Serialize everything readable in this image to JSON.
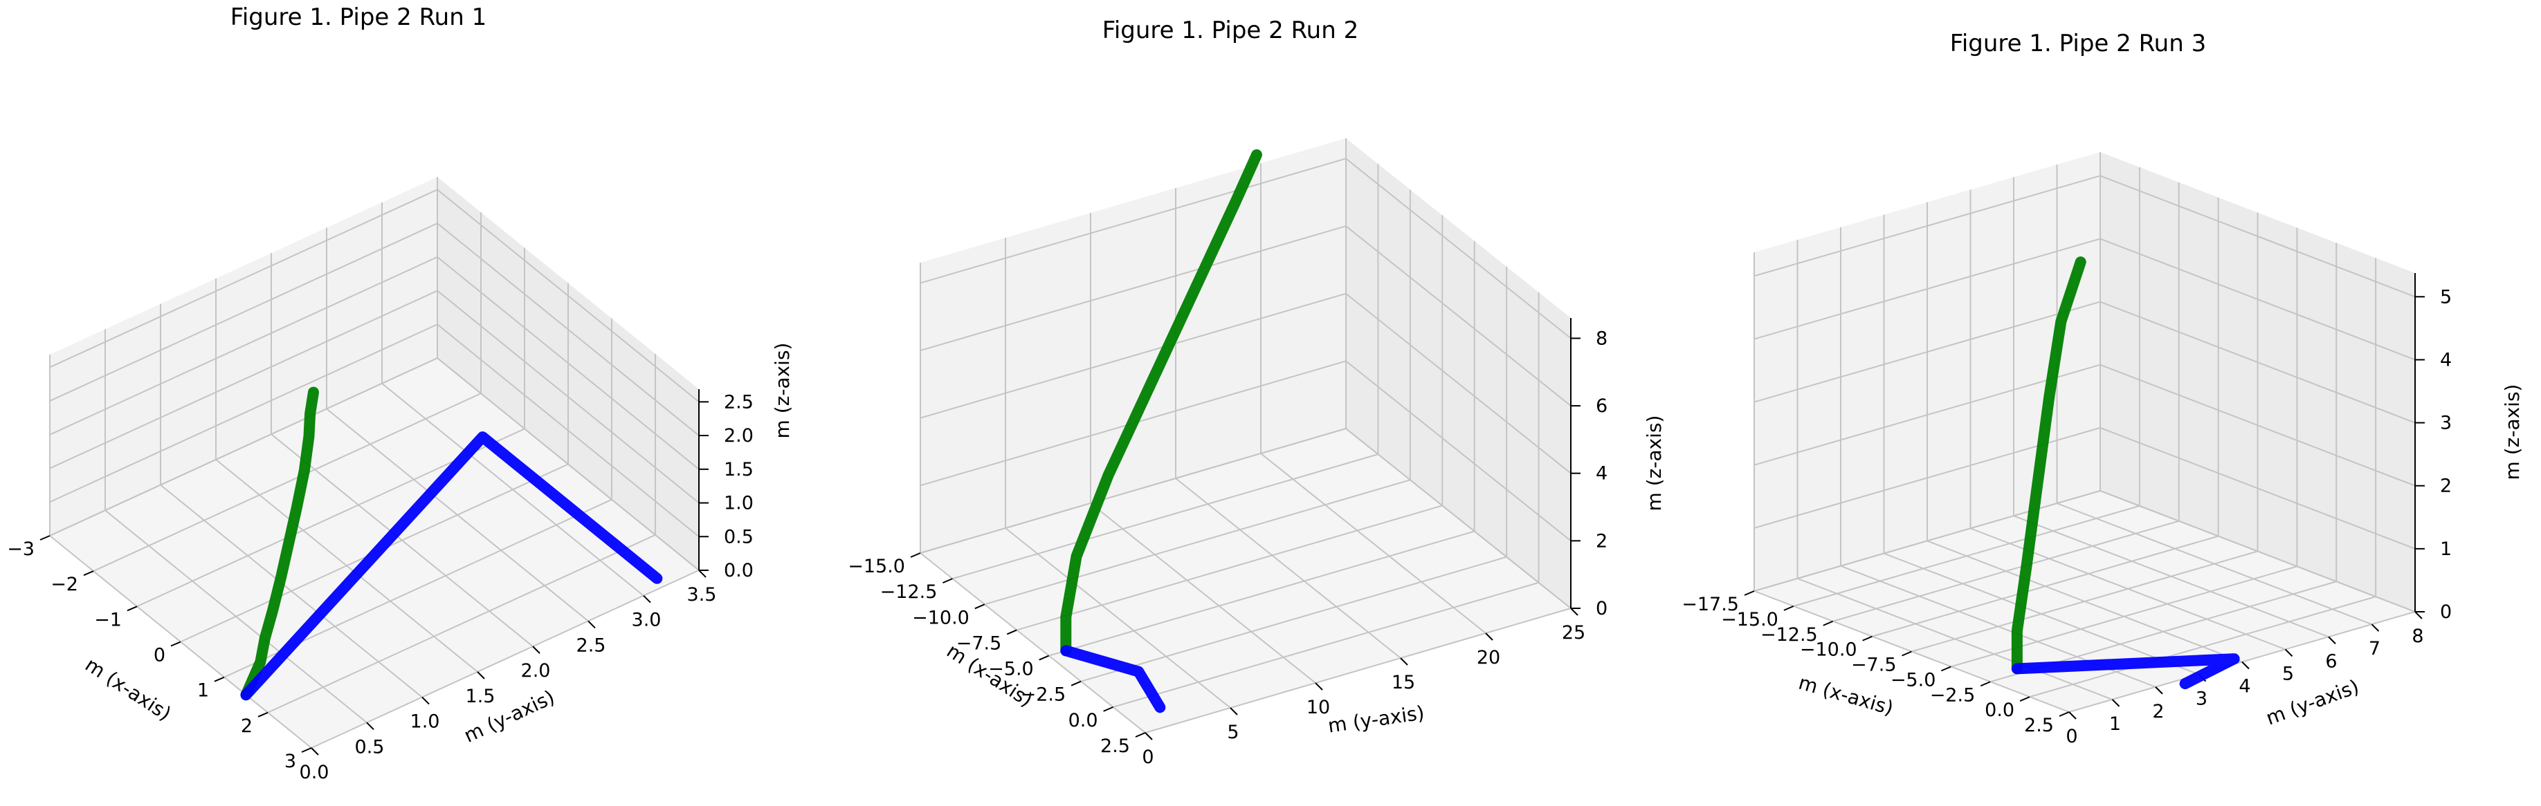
{
  "chart_data": [
    {
      "type": "line3d",
      "title": "Figure 1. Pipe 2 Run 1",
      "xlabel": "m (x-axis)",
      "ylabel": "m (y-axis)",
      "zlabel": "m (z-axis)",
      "xticks": [
        "−3",
        "−2",
        "−1",
        "0",
        "1",
        "2",
        "3"
      ],
      "yticks": [
        "0.0",
        "0.5",
        "1.0",
        "1.5",
        "2.0",
        "2.5",
        "3.0",
        "3.5"
      ],
      "zticks": [
        "0.0",
        "0.5",
        "1.0",
        "1.5",
        "2.0",
        "2.5"
      ],
      "grid": true,
      "series": [
        {
          "color": "#008000",
          "points": [
            [
              1.5,
              0.0,
              0.0
            ],
            [
              1.5,
              0.05,
              0.15
            ],
            [
              1.45,
              0.15,
              0.35
            ],
            [
              1.3,
              0.25,
              0.55
            ],
            [
              1.1,
              0.4,
              0.75
            ],
            [
              0.9,
              0.55,
              1.0
            ],
            [
              0.7,
              0.7,
              1.3
            ],
            [
              0.5,
              0.85,
              1.6
            ],
            [
              0.3,
              1.0,
              1.95
            ],
            [
              0.15,
              1.1,
              2.3
            ],
            [
              0.05,
              1.15,
              2.55
            ],
            [
              0.0,
              1.2,
              2.8
            ]
          ]
        },
        {
          "color": "#0000ff",
          "points": [
            [
              1.5,
              0.0,
              0.0
            ],
            [
              -1.2,
              3.2,
              0.0
            ],
            [
              2.8,
              3.2,
              0.0
            ]
          ]
        }
      ]
    },
    {
      "type": "line3d",
      "title": "Figure 1. Pipe 2 Run 2",
      "xlabel": "m (x-axis)",
      "ylabel": "m (y-axis)",
      "zlabel": "m (z-axis)",
      "xticks": [
        "−15.0",
        "−12.5",
        "−10.0",
        "−7.5",
        "−5.0",
        "−2.5",
        "0.0",
        "2.5"
      ],
      "yticks": [
        "0",
        "5",
        "10",
        "15",
        "20",
        "25"
      ],
      "zticks": [
        "0",
        "2",
        "4",
        "6",
        "8"
      ],
      "grid": true,
      "series": [
        {
          "color": "#008000",
          "points": [
            [
              -5.0,
              1.0,
              0.0
            ],
            [
              -5.0,
              1.0,
              1.0
            ],
            [
              -5.5,
              2.0,
              2.5
            ],
            [
              -7.0,
              5.0,
              4.0
            ],
            [
              -9.0,
              9.0,
              5.5
            ],
            [
              -11.0,
              13.0,
              7.0
            ],
            [
              -13.0,
              17.0,
              8.5
            ],
            [
              -14.0,
              19.0,
              9.3
            ]
          ]
        },
        {
          "color": "#0000ff",
          "points": [
            [
              -5.0,
              1.0,
              0.0
            ],
            [
              -2.0,
              3.0,
              0.0
            ],
            [
              1.0,
              2.0,
              0.0
            ]
          ]
        }
      ]
    },
    {
      "type": "line3d",
      "title": "Figure 1. Pipe 2 Run 3",
      "xlabel": "m (x-axis)",
      "ylabel": "m (y-axis)",
      "zlabel": "m (z-axis)",
      "xticks": [
        "−17.5",
        "−15.0",
        "−12.5",
        "−10.0",
        "−7.5",
        "−5.0",
        "−2.5",
        "0.0",
        "2.5"
      ],
      "yticks": [
        "0",
        "1",
        "2",
        "3",
        "4",
        "5",
        "6",
        "7",
        "8"
      ],
      "zticks": [
        "0",
        "1",
        "2",
        "3",
        "4",
        "5"
      ],
      "grid": true,
      "series": [
        {
          "color": "#008000",
          "points": [
            [
              -3.0,
              0.8,
              0.0
            ],
            [
              -3.0,
              0.8,
              0.6
            ],
            [
              -3.5,
              1.2,
              1.5
            ],
            [
              -5.0,
              2.0,
              2.5
            ],
            [
              -7.0,
              3.0,
              3.5
            ],
            [
              -9.0,
              4.0,
              4.3
            ],
            [
              -10.5,
              5.0,
              4.9
            ]
          ]
        },
        {
          "color": "#0000ff",
          "points": [
            [
              -3.0,
              0.8,
              0.0
            ],
            [
              2.0,
              4.0,
              0.0
            ],
            [
              3.0,
              2.5,
              0.0
            ]
          ]
        }
      ]
    }
  ]
}
